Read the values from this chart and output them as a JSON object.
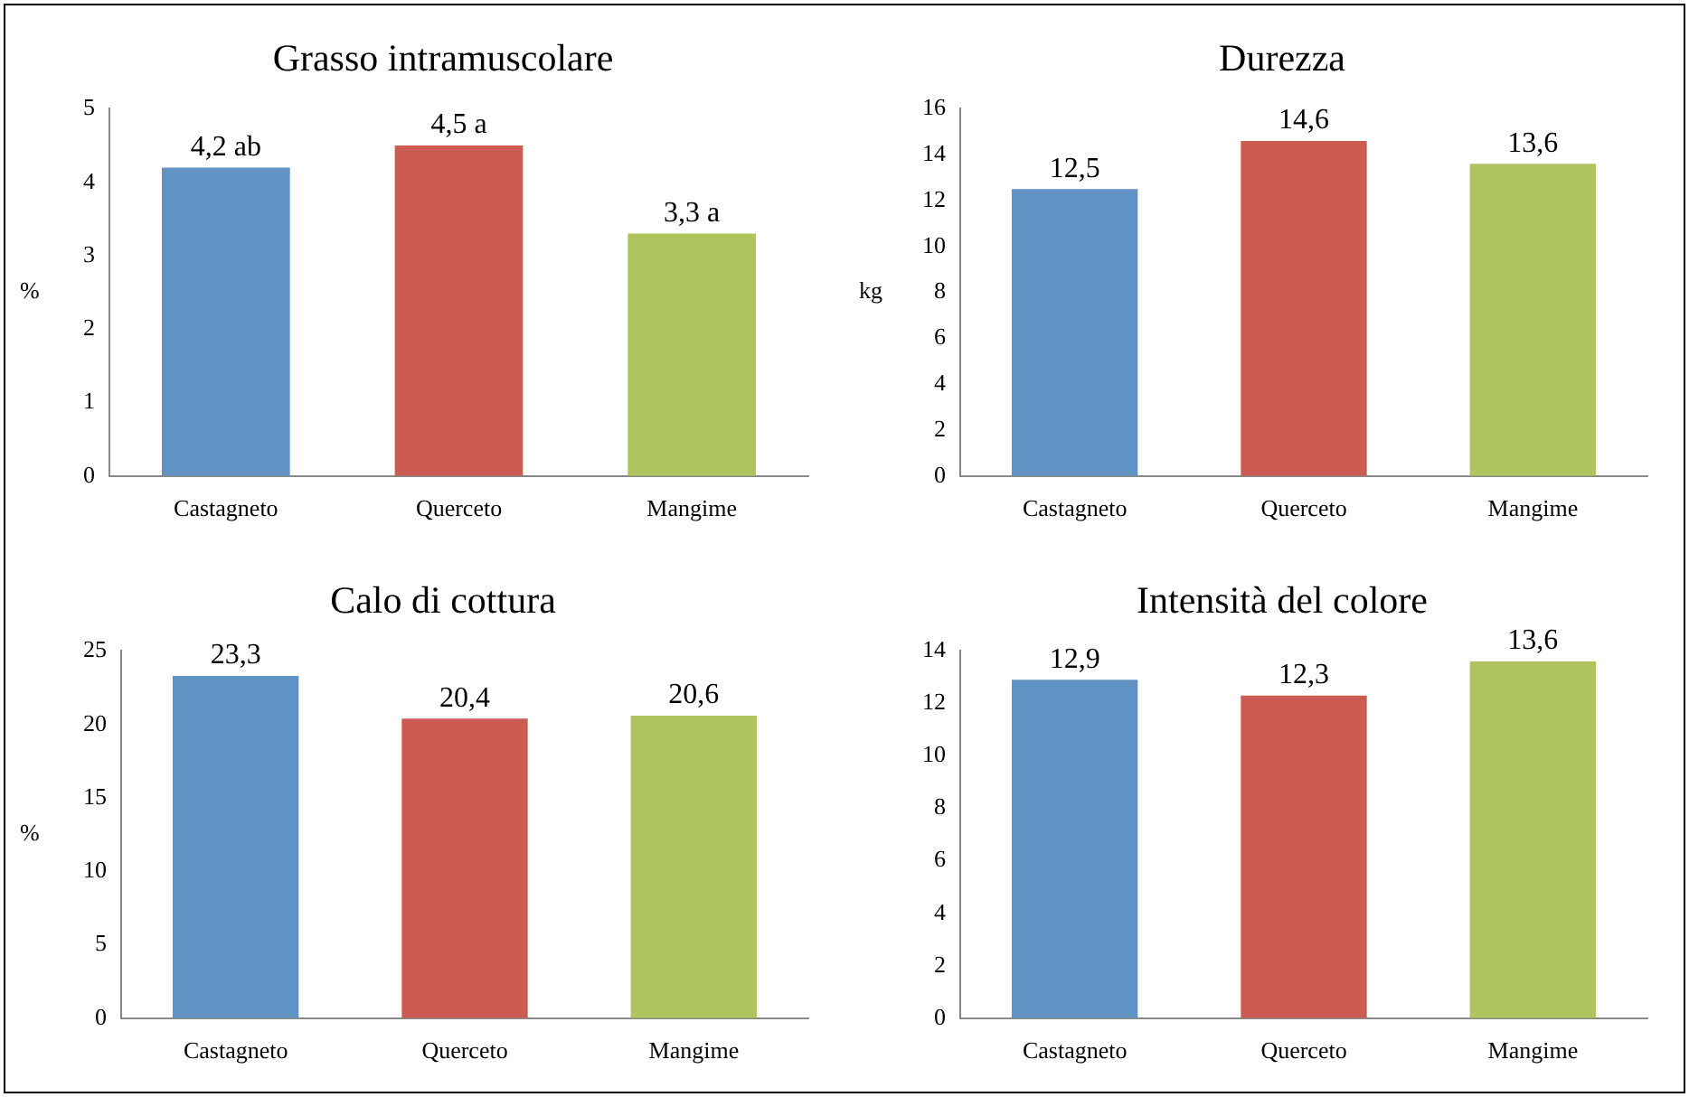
{
  "chart_data": [
    {
      "type": "bar",
      "title": "Grasso intramuscolare",
      "ylabel": "%",
      "categories": [
        "Castagneto",
        "Querceto",
        "Mangime"
      ],
      "values": [
        4.2,
        4.5,
        3.3
      ],
      "colors": [
        "#6092c3",
        "#cc5c53",
        "#afc45c"
      ],
      "value_labels": [
        "4,2 ab",
        "4,5 a",
        "3,3 a"
      ],
      "ylim": [
        0,
        5
      ],
      "yticks": [
        0,
        1,
        2,
        3,
        4,
        5
      ]
    },
    {
      "type": "bar",
      "title": "Durezza",
      "ylabel": "kg",
      "categories": [
        "Castagneto",
        "Querceto",
        "Mangime"
      ],
      "values": [
        12.5,
        14.6,
        13.6
      ],
      "colors": [
        "#6092c3",
        "#cc5c53",
        "#afc45c"
      ],
      "value_labels": [
        "12,5",
        "14,6",
        "13,6"
      ],
      "ylim": [
        0,
        16
      ],
      "yticks": [
        0,
        2,
        4,
        6,
        8,
        10,
        12,
        14,
        16
      ]
    },
    {
      "type": "bar",
      "title": "Calo di cottura",
      "ylabel": "%",
      "categories": [
        "Castagneto",
        "Querceto",
        "Mangime"
      ],
      "values": [
        23.3,
        20.4,
        20.6
      ],
      "colors": [
        "#6092c3",
        "#cc5c53",
        "#afc45c"
      ],
      "value_labels": [
        "23,3",
        "20,4",
        "20,6"
      ],
      "ylim": [
        0,
        25
      ],
      "yticks": [
        0,
        5,
        10,
        15,
        20,
        25
      ]
    },
    {
      "type": "bar",
      "title": "Intensità del colore",
      "categories": [
        "Castagneto",
        "Querceto",
        "Mangime"
      ],
      "values": [
        12.9,
        12.3,
        13.6
      ],
      "colors": [
        "#6092c3",
        "#cc5c53",
        "#afc45c"
      ],
      "value_labels": [
        "12,9",
        "12,3",
        "13,6"
      ],
      "ylim": [
        0,
        14
      ],
      "yticks": [
        0,
        2,
        4,
        6,
        8,
        10,
        12,
        14
      ]
    }
  ]
}
